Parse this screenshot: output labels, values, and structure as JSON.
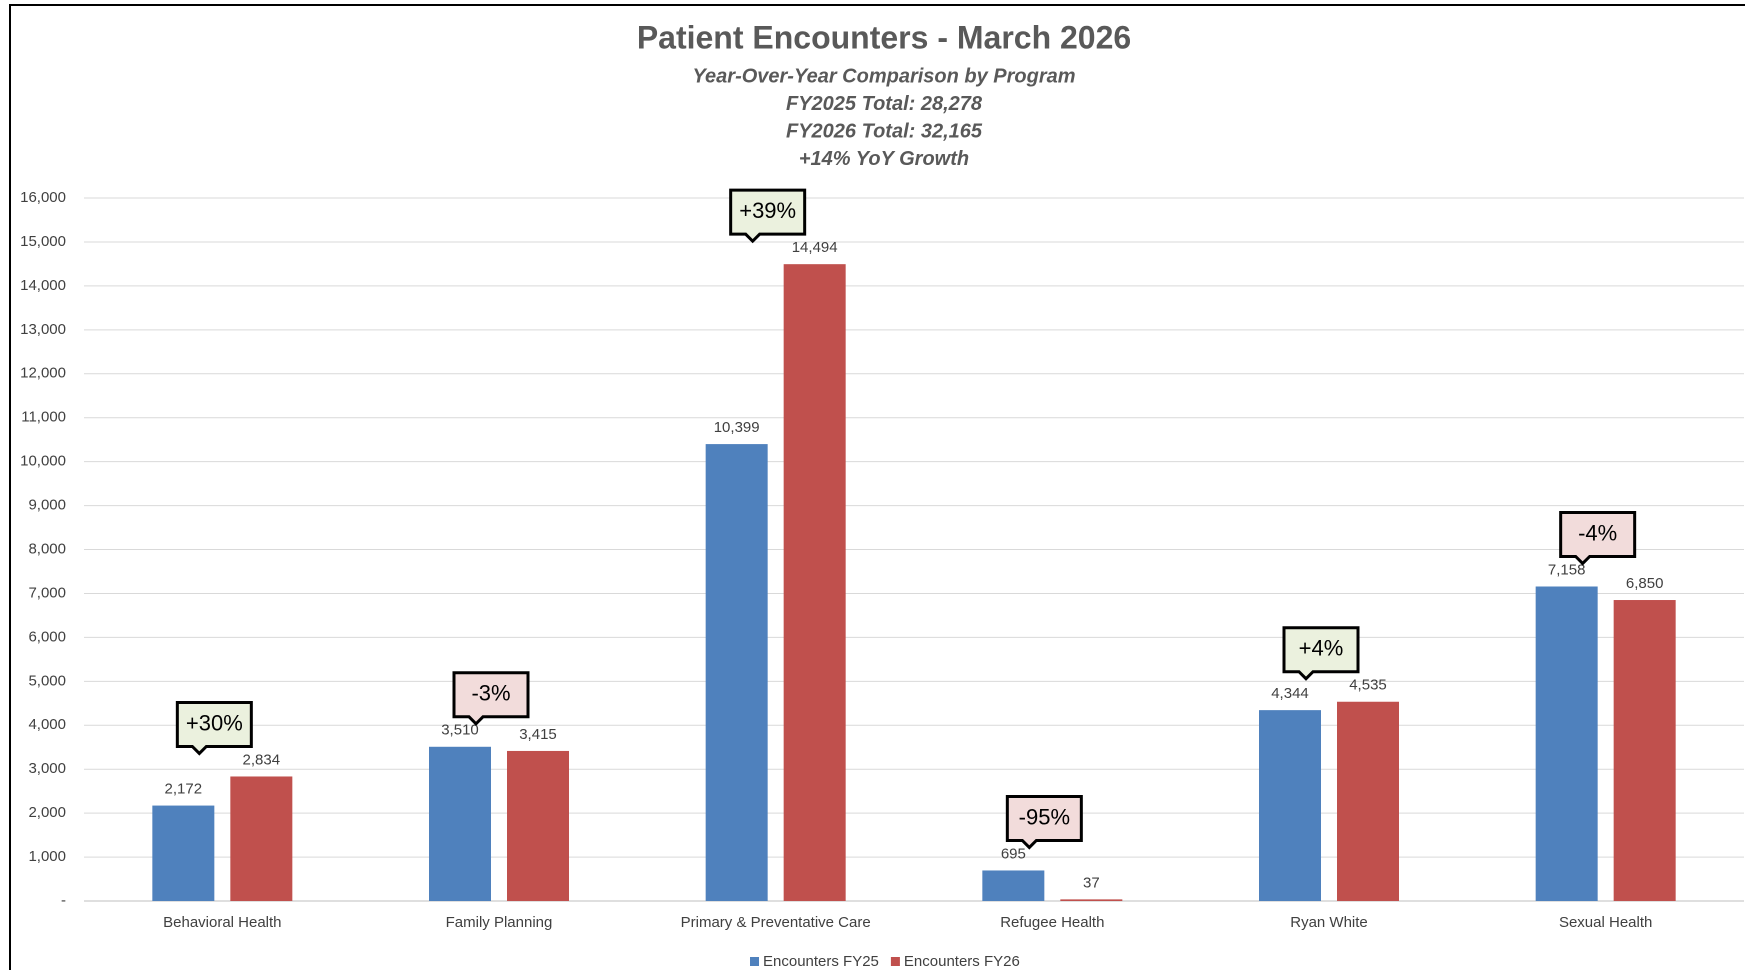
{
  "chart_data": {
    "type": "bar",
    "title": "Patient Encounters - March 2026",
    "subtitles": [
      "Year-Over-Year Comparison by Program",
      "FY2025 Total: 28,278",
      "FY2026 Total: 32,165",
      "+14% YoY Growth"
    ],
    "categories": [
      "Behavioral Health",
      "Family Planning",
      "Primary & Preventative Care",
      "Refugee Health",
      "Ryan White",
      "Sexual Health"
    ],
    "series": [
      {
        "name": "Encounters FY25",
        "color": "#4f81bd",
        "values": [
          2172,
          3510,
          10399,
          695,
          4344,
          7158
        ],
        "value_labels": [
          "2,172",
          "3,510",
          "10,399",
          "695",
          "4,344",
          "7,158"
        ]
      },
      {
        "name": "Encounters FY26",
        "color": "#c0504d",
        "values": [
          2834,
          3415,
          14494,
          37,
          4535,
          6850
        ],
        "value_labels": [
          "2,834",
          "3,415",
          "14,494",
          "37",
          "4,535",
          "6,850"
        ]
      }
    ],
    "annotations": [
      "+30%",
      "-3%",
      "+39%",
      "-95%",
      "+4%",
      "-4%"
    ],
    "annotation_fills": [
      "#ebf1de",
      "#f2dcdb",
      "#ebf1de",
      "#f2dcdb",
      "#ebf1de",
      "#f2dcdb"
    ],
    "ylim": [
      0,
      16000
    ],
    "yticks": [
      {
        "value": 0,
        "label": "-"
      },
      {
        "value": 1000,
        "label": "1,000"
      },
      {
        "value": 2000,
        "label": "2,000"
      },
      {
        "value": 3000,
        "label": "3,000"
      },
      {
        "value": 4000,
        "label": "4,000"
      },
      {
        "value": 5000,
        "label": "5,000"
      },
      {
        "value": 6000,
        "label": "6,000"
      },
      {
        "value": 7000,
        "label": "7,000"
      },
      {
        "value": 8000,
        "label": "8,000"
      },
      {
        "value": 9000,
        "label": "9,000"
      },
      {
        "value": 10000,
        "label": "10,000"
      },
      {
        "value": 11000,
        "label": "11,000"
      },
      {
        "value": 12000,
        "label": "12,000"
      },
      {
        "value": 13000,
        "label": "13,000"
      },
      {
        "value": 14000,
        "label": "14,000"
      },
      {
        "value": 15000,
        "label": "15,000"
      },
      {
        "value": 16000,
        "label": "16,000"
      }
    ],
    "grid": true,
    "legend": "bottom"
  }
}
